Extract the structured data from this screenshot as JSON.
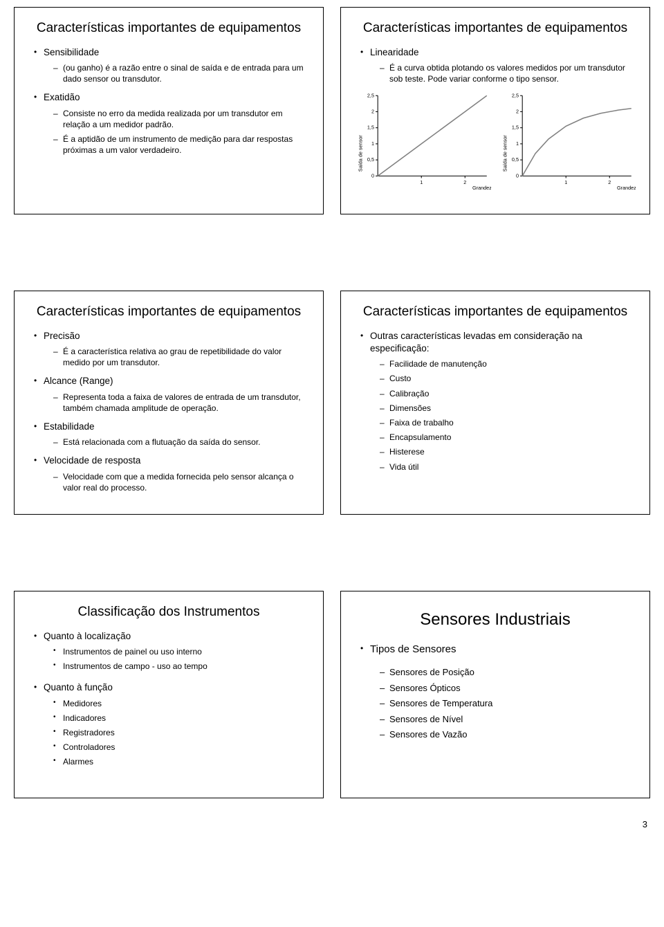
{
  "page_number": "3",
  "slides": {
    "s1": {
      "title": "Características importantes de equipamentos",
      "b1": "Sensibilidade",
      "b1s1": "(ou ganho) é a razão entre o sinal de saída e de entrada para um dado sensor ou transdutor.",
      "b2": "Exatidão",
      "b2s1": "Consiste no erro da medida realizada por um transdutor em relação a um medidor padrão.",
      "b2s2": "É a aptidão de um instrumento de medição para dar respostas próximas a um valor verdadeiro."
    },
    "s2": {
      "title": "Características importantes de equipamentos",
      "b1": "Linearidade",
      "b1s1": "É a curva obtida plotando os valores medidos por um transdutor sob teste. Pode variar conforme o tipo sensor.",
      "chart_common": {
        "yticks": [
          "0",
          "0,5",
          "1",
          "1,5",
          "2",
          "2,5"
        ],
        "xticks": [
          "1",
          "2"
        ],
        "ylabel": "Saída de sensor",
        "xlabel": "Grandeza",
        "axis_color": "#000000",
        "line_color": "#808080",
        "tick_fontsize": 7,
        "label_fontsize": 7
      },
      "chart1_points": [
        [
          0,
          0
        ],
        [
          1,
          1
        ],
        [
          2,
          2
        ],
        [
          2.5,
          2.5
        ]
      ],
      "chart2_points": [
        [
          0,
          0
        ],
        [
          0.3,
          0.7
        ],
        [
          0.6,
          1.15
        ],
        [
          1.0,
          1.55
        ],
        [
          1.4,
          1.8
        ],
        [
          1.8,
          1.95
        ],
        [
          2.2,
          2.05
        ],
        [
          2.5,
          2.1
        ]
      ]
    },
    "s3": {
      "title": "Características importantes de equipamentos",
      "b1": "Precisão",
      "b1s1": "É a característica relativa ao grau de repetibilidade do valor medido por um transdutor.",
      "b2": "Alcance (Range)",
      "b2s1": "Representa toda a faixa de valores de entrada de um transdutor, também chamada amplitude de operação.",
      "b3": "Estabilidade",
      "b3s1": "Está relacionada com a flutuação da saída do sensor.",
      "b4": "Velocidade de resposta",
      "b4s1": "Velocidade com que a medida fornecida pelo sensor alcança o valor real do processo."
    },
    "s4": {
      "title": "Características importantes de equipamentos",
      "b1": "Outras características levadas em consideração na especificação:",
      "i1": "Facilidade de manutenção",
      "i2": "Custo",
      "i3": "Calibração",
      "i4": "Dimensões",
      "i5": "Faixa de trabalho",
      "i6": "Encapsulamento",
      "i7": "Histerese",
      "i8": "Vida útil"
    },
    "s5": {
      "title": "Classificação dos Instrumentos",
      "b1": "Quanto à localização",
      "b1s1": "Instrumentos de painel ou uso interno",
      "b1s2": "Instrumentos de campo - uso ao tempo",
      "b2": "Quanto à função",
      "b2s1": "Medidores",
      "b2s2": "Indicadores",
      "b2s3": "Registradores",
      "b2s4": "Controladores",
      "b2s5": "Alarmes"
    },
    "s6": {
      "title": "Sensores Industriais",
      "b1": "Tipos de Sensores",
      "i1": "Sensores de Posição",
      "i2": "Sensores Ópticos",
      "i3": "Sensores de Temperatura",
      "i4": "Sensores de Nível",
      "i5": "Sensores de Vazão"
    }
  }
}
